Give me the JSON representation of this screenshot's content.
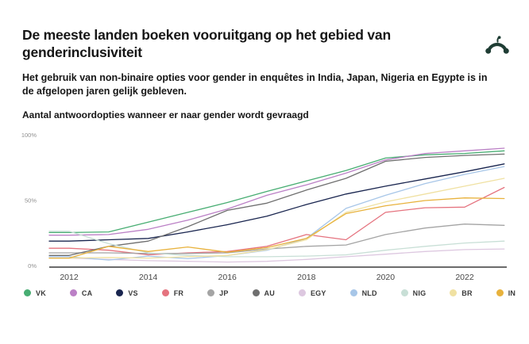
{
  "header": {
    "title": "De meeste landen boeken vooruitgang op het gebied van genderinclusiviteit",
    "subtitle": "Het gebruik van non-binaire opties voor gender in enquêtes in India, Japan, Nigeria en Egypte is in de afgelopen jaren gelijk gebleven.",
    "chart_label": "Aantal antwoordopties wanneer er naar gender wordt gevraagd",
    "logo_name": "surveymonkey-logo",
    "logo_color": "#1f3d34"
  },
  "chart_data": {
    "type": "line",
    "title": "Aantal antwoordopties wanneer er naar gender wordt gevraagd",
    "xlabel": "",
    "ylabel": "",
    "ylim": [
      0,
      100
    ],
    "grid": false,
    "legend_position": "bottom",
    "x": [
      2012,
      2013,
      2014,
      2015,
      2016,
      2017,
      2018,
      2019,
      2020,
      2021,
      2022,
      2023
    ],
    "xticks": [
      2012,
      2014,
      2016,
      2018,
      2020,
      2022
    ],
    "yticks": [
      {
        "label": "100%",
        "value": 100
      },
      {
        "label": "50%",
        "value": 50
      },
      {
        "label": "0%",
        "value": 0
      }
    ],
    "axis_color": "#3a3a3a",
    "tick_label_color": "#909090",
    "xtick_label_color": "#474747",
    "series": [
      {
        "name": "VK",
        "color": "#47ad72",
        "values": [
          25.5,
          26,
          33.5,
          41,
          48.5,
          57,
          65,
          73,
          82.5,
          85,
          86,
          88
        ]
      },
      {
        "name": "CA",
        "color": "#bb80c6",
        "values": [
          23.5,
          24,
          28,
          35,
          43.5,
          54,
          62,
          71,
          81,
          86,
          88,
          90
        ]
      },
      {
        "name": "VS",
        "color": "#19254f",
        "values": [
          19,
          20,
          21,
          26,
          31.5,
          38,
          47,
          55,
          61,
          66.5,
          72,
          78
        ]
      },
      {
        "name": "FR",
        "color": "#e5737f",
        "values": [
          13.5,
          12,
          8.5,
          10,
          11,
          15,
          24,
          20,
          41,
          44.5,
          45,
          60
        ]
      },
      {
        "name": "JP",
        "color": "#a4a4a4",
        "values": [
          10,
          10,
          9.5,
          9.5,
          10,
          13,
          15,
          16,
          24,
          29,
          32,
          31
        ]
      },
      {
        "name": "AU",
        "color": "#6f6f6f",
        "values": [
          8,
          15,
          19,
          30,
          42.5,
          48,
          58,
          67,
          80,
          83,
          84.5,
          85.5
        ]
      },
      {
        "name": "EGY",
        "color": "#ddc8e0",
        "values": [
          6,
          5,
          4,
          3.5,
          3,
          3.5,
          5,
          7,
          9,
          11,
          12.5,
          13
        ]
      },
      {
        "name": "NLD",
        "color": "#a7c6e8",
        "values": [
          7,
          4.5,
          7.5,
          5.5,
          8,
          12,
          21,
          44,
          54,
          63,
          70,
          76
        ]
      },
      {
        "name": "NIG",
        "color": "#c8dfd6",
        "values": [
          26.5,
          17,
          10,
          8,
          7,
          7,
          7.5,
          8.5,
          12,
          15,
          17.5,
          19
        ]
      },
      {
        "name": "BR",
        "color": "#f0e1a2",
        "values": [
          6,
          6.5,
          6,
          7,
          8,
          12.5,
          20,
          41,
          49,
          55,
          61,
          67
        ]
      },
      {
        "name": "IN",
        "color": "#e8b23c",
        "values": [
          6,
          15,
          11,
          14.5,
          10.5,
          14,
          21,
          40,
          46,
          50,
          52,
          51.5
        ]
      }
    ]
  }
}
